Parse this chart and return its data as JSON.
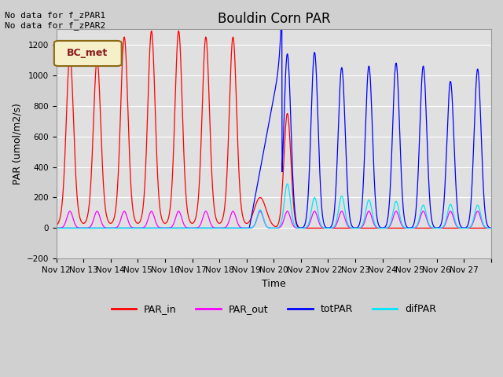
{
  "title": "Bouldin Corn PAR",
  "ylabel": "PAR (umol/m2/s)",
  "xlabel": "Time",
  "ylim": [
    -200,
    1300
  ],
  "yticks": [
    -200,
    0,
    200,
    400,
    600,
    800,
    1000,
    1200
  ],
  "xtick_positions": [
    0,
    1,
    2,
    3,
    4,
    5,
    6,
    7,
    8,
    9,
    10,
    11,
    12,
    13,
    14,
    15,
    16
  ],
  "xtick_labels": [
    "Nov 12",
    "Nov 13",
    "Nov 14",
    "Nov 15",
    "Nov 16",
    "Nov 17",
    "Nov 18",
    "Nov 19",
    "Nov 20",
    "Nov 21",
    "Nov 22",
    "Nov 23",
    "Nov 24",
    "Nov 25",
    "Nov 26",
    "Nov 27",
    ""
  ],
  "annotation_text": "No data for f_zPAR1\nNo data for f_zPAR2",
  "legend_box_label": "BC_met",
  "legend_box_facecolor": "#f5f0c8",
  "legend_box_edgecolor": "#8b6914",
  "legend_box_textcolor": "#8b1a1a",
  "colors": {
    "PAR_in": "#ff0000",
    "PAR_out": "#ff00ff",
    "totPAR": "#0000ff",
    "difPAR": "#00e5ff"
  },
  "fig_facecolor": "#d0d0d0",
  "plot_facecolor": "#e0e0e0"
}
